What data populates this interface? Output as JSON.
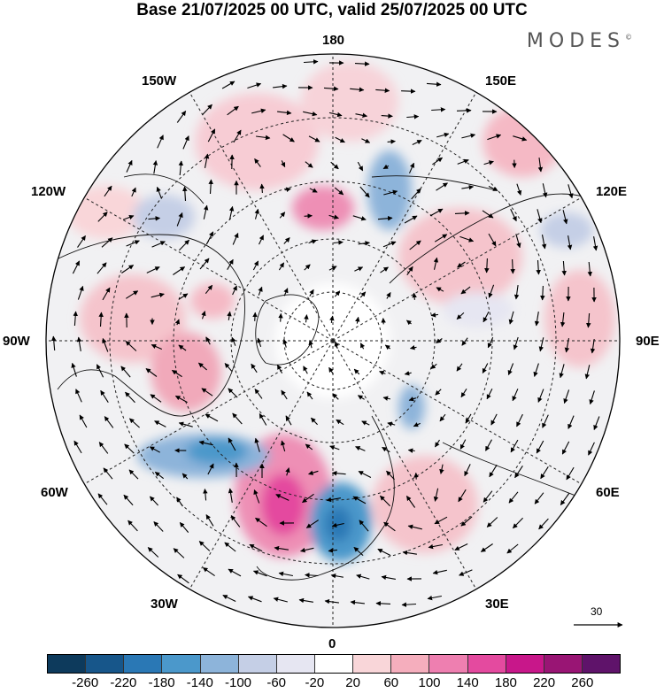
{
  "title": "Base 21/07/2025 00 UTC, valid 25/07/2025 00 UTC",
  "brand": "MODES",
  "brand_mark": "©",
  "longitude_labels": {
    "l180": "180",
    "l150w": "150W",
    "l150e": "150E",
    "l120w": "120W",
    "l120e": "120E",
    "l90w": "90W",
    "l90e": "90E",
    "l60w": "60W",
    "l60e": "60E",
    "l30w": "30W",
    "l30e": "30E",
    "l0": "0"
  },
  "reference_vector": {
    "value": "30"
  },
  "colorbar": {
    "colors": [
      "#0d3a5c",
      "#17568a",
      "#2a78b5",
      "#4b98cb",
      "#8db4da",
      "#c5cfe6",
      "#e6e6f2",
      "#ffffff",
      "#f9d6d9",
      "#f5aebd",
      "#ee7fb0",
      "#e44a9f",
      "#c8178a",
      "#991574",
      "#5f136a"
    ],
    "labels": [
      "-260",
      "-220",
      "-180",
      "-140",
      "-100",
      "-60",
      "-20",
      "20",
      "60",
      "100",
      "140",
      "180",
      "220",
      "260"
    ]
  }
}
